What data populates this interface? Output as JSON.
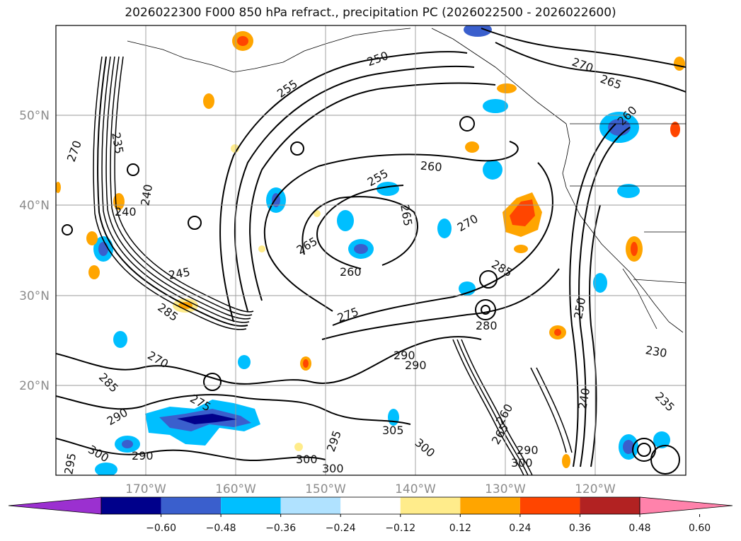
{
  "title": "2026022300 F000 850 hPa refract., precipitation PC (2026022500 - 2026022600)",
  "map": {
    "lat_labels": [
      "50°N",
      "40°N",
      "30°N",
      "20°N"
    ],
    "lon_labels": [
      "170°W",
      "160°W",
      "150°W",
      "140°W",
      "130°W",
      "120°W"
    ],
    "contour_labels": [
      {
        "text": "250"
      },
      {
        "text": "255"
      },
      {
        "text": "270"
      },
      {
        "text": "265"
      },
      {
        "text": "260"
      },
      {
        "text": "255"
      },
      {
        "text": "260"
      },
      {
        "text": "265"
      },
      {
        "text": "270"
      },
      {
        "text": "265"
      },
      {
        "text": "260"
      },
      {
        "text": "275"
      },
      {
        "text": "280"
      },
      {
        "text": "290"
      },
      {
        "text": "290"
      },
      {
        "text": "245"
      },
      {
        "text": "240"
      },
      {
        "text": "240"
      },
      {
        "text": "235"
      },
      {
        "text": "270"
      },
      {
        "text": "285"
      },
      {
        "text": "270"
      },
      {
        "text": "285"
      },
      {
        "text": "290"
      },
      {
        "text": "290"
      },
      {
        "text": "300"
      },
      {
        "text": "295"
      },
      {
        "text": "295"
      },
      {
        "text": "300"
      },
      {
        "text": "300"
      },
      {
        "text": "305"
      },
      {
        "text": "300"
      },
      {
        "text": "290"
      },
      {
        "text": "300"
      },
      {
        "text": "230"
      },
      {
        "text": "235"
      },
      {
        "text": "250"
      },
      {
        "text": "240"
      },
      {
        "text": "260"
      },
      {
        "text": "265"
      },
      {
        "text": "275"
      },
      {
        "text": "285"
      }
    ]
  },
  "colorbar": {
    "ticks": [
      "−0.60",
      "−0.48",
      "−0.36",
      "−0.24",
      "−0.12",
      "0.12",
      "0.24",
      "0.36",
      "0.48",
      "0.60"
    ],
    "colors": [
      "#9b30d0",
      "#00008b",
      "#3a5fcd",
      "#00bfff",
      "#b0e2ff",
      "#ffffff",
      "#ffec8b",
      "#ffa500",
      "#ff4500",
      "#b22222",
      "#ff82ab"
    ]
  }
}
